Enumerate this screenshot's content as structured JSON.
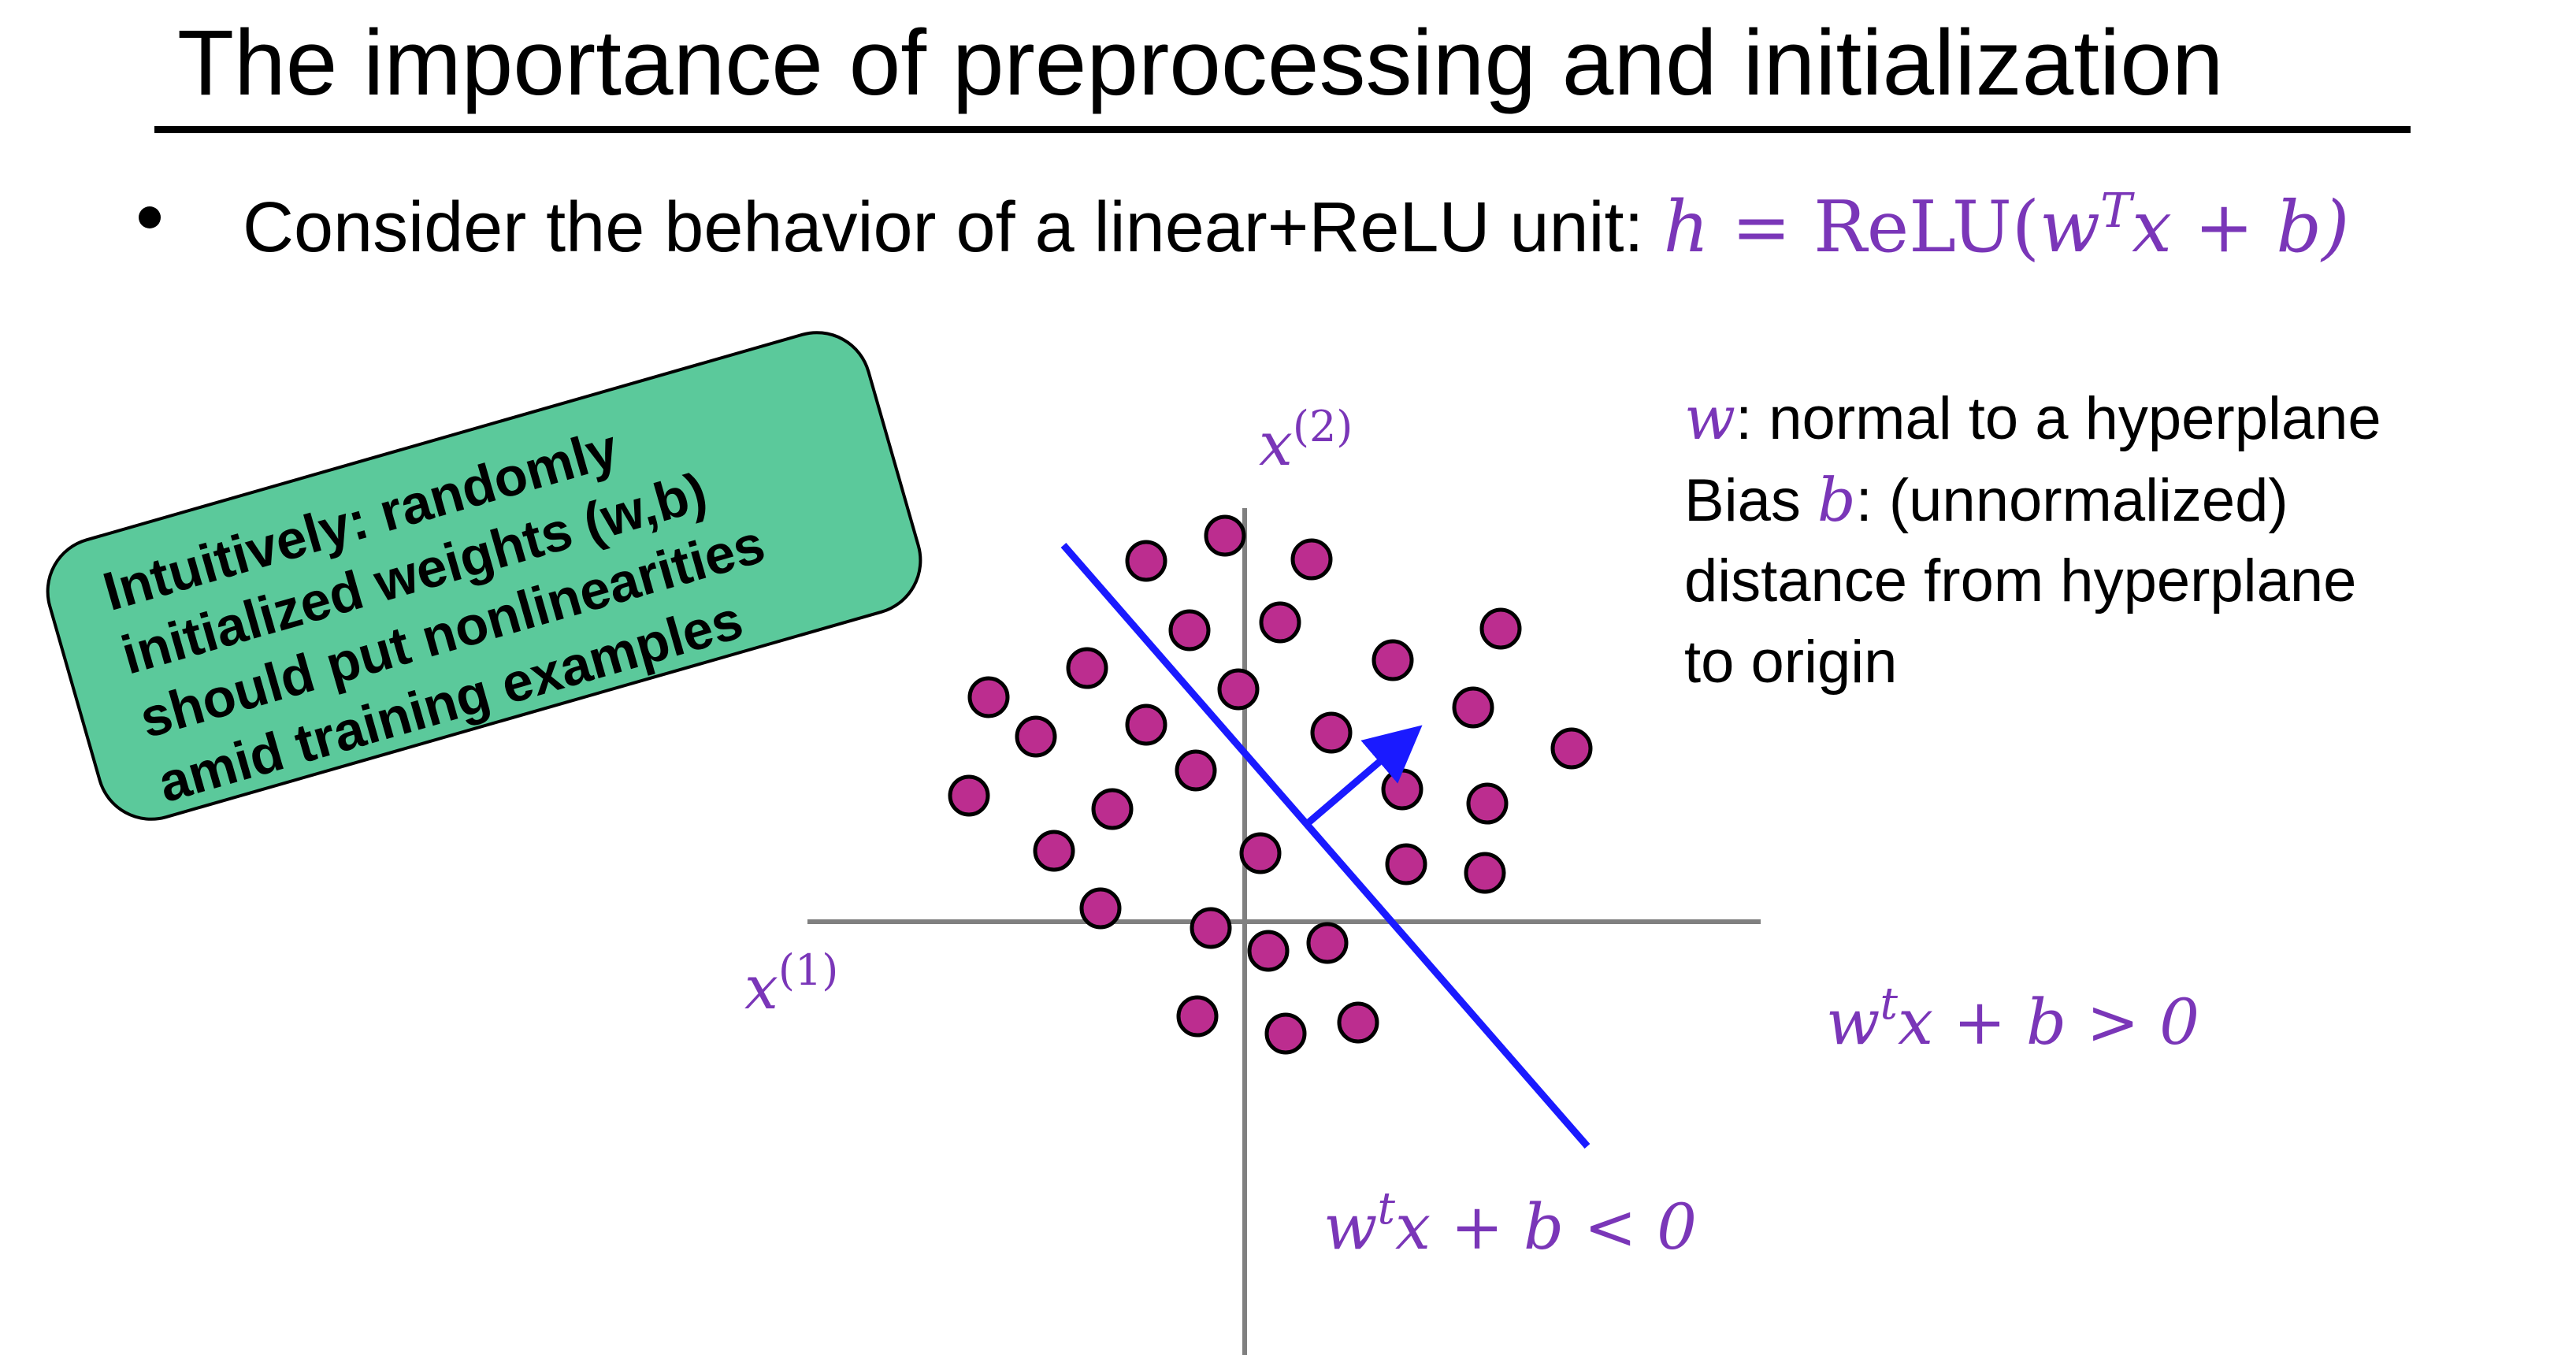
{
  "title": "The importance of preprocessing and initialization",
  "bullet": {
    "text": "Consider the behavior of a linear+ReLU unit: ",
    "equation": {
      "lhs": "h",
      "eq": " = ",
      "fn": "ReLU(",
      "w": "w",
      "sup": "T",
      "rest": "x + b)"
    }
  },
  "callout": {
    "lines": [
      "Intuitively: randomly",
      "initialized weights (w,b)",
      "should put nonlinearities",
      "amid training examples"
    ]
  },
  "side_notes": {
    "w_symbol": "w",
    "w_text": ": normal to a hyperplane",
    "bias_prefix": "Bias ",
    "b_symbol": "b",
    "bias_text": ": (unnormalized)",
    "line3": "distance from hyperplane",
    "line4": "to origin"
  },
  "axes": {
    "x_label_base": "x",
    "x_label_sup": "(1)",
    "y_label_base": "x",
    "y_label_sup": "(2)"
  },
  "regions": {
    "positive": {
      "w": "w",
      "sup": "t",
      "rest": "x + b > 0"
    },
    "negative": {
      "w": "w",
      "sup": "t",
      "rest": "x + b < 0"
    }
  },
  "colors": {
    "point_fill": "#bc2d8f",
    "hyperplane": "#1a1aff",
    "math": "#7a36b8",
    "callout": "#5bc99b",
    "axis": "#808080"
  },
  "points": [
    [
      1555,
      680
    ],
    [
      1455,
      712
    ],
    [
      1665,
      710
    ],
    [
      1510,
      800
    ],
    [
      1625,
      790
    ],
    [
      1380,
      848
    ],
    [
      1768,
      838
    ],
    [
      1905,
      798
    ],
    [
      1255,
      885
    ],
    [
      1315,
      935
    ],
    [
      1455,
      920
    ],
    [
      1572,
      875
    ],
    [
      1690,
      930
    ],
    [
      1870,
      898
    ],
    [
      1995,
      950
    ],
    [
      1230,
      1010
    ],
    [
      1412,
      1027
    ],
    [
      1518,
      978
    ],
    [
      1780,
      1002
    ],
    [
      1888,
      1020
    ],
    [
      1338,
      1080
    ],
    [
      1600,
      1083
    ],
    [
      1785,
      1097
    ],
    [
      1885,
      1108
    ],
    [
      1397,
      1153
    ],
    [
      1537,
      1178
    ],
    [
      1610,
      1207
    ],
    [
      1685,
      1197
    ],
    [
      1520,
      1290
    ],
    [
      1632,
      1312
    ],
    [
      1724,
      1298
    ]
  ]
}
